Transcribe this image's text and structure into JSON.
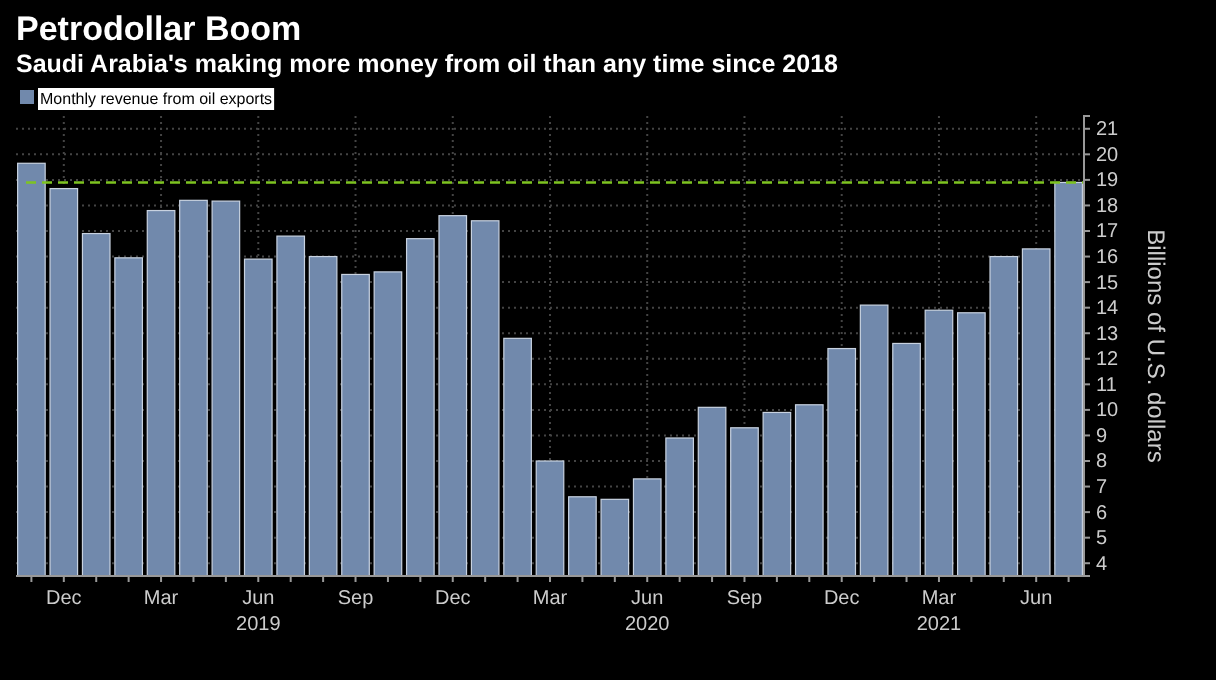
{
  "chart_data": {
    "type": "bar",
    "title": "Petrodollar Boom",
    "subtitle": "Saudi Arabia's making more money from oil than any time since 2018",
    "ylabel": "Billions of U.S. dollars",
    "categories": [
      null,
      "Dec",
      null,
      null,
      "Mar",
      null,
      null,
      "Jun\n2019",
      null,
      null,
      "Sep",
      null,
      null,
      "Dec",
      null,
      null,
      "Mar",
      null,
      null,
      "Jun\n2020",
      null,
      null,
      "Sep",
      null,
      null,
      "Dec",
      null,
      null,
      "Mar\n2021",
      null,
      null,
      "Jun",
      null
    ],
    "series": [
      {
        "name": "Monthly revenue from oil exports",
        "color": "#7189ac",
        "values": [
          19.65,
          18.66,
          16.9,
          15.95,
          17.8,
          18.2,
          18.17,
          15.9,
          16.8,
          16.0,
          15.3,
          15.4,
          16.7,
          17.6,
          17.4,
          12.8,
          8.0,
          6.6,
          6.5,
          7.3,
          8.9,
          10.1,
          9.3,
          9.9,
          10.2,
          12.4,
          14.1,
          12.6,
          13.9,
          13.8,
          16.0,
          16.3,
          18.9
        ]
      }
    ],
    "ylim": [
      3.5,
      21.5
    ],
    "yticks": [
      4,
      5,
      6,
      7,
      8,
      9,
      10,
      11,
      12,
      13,
      14,
      15,
      16,
      17,
      18,
      19,
      20,
      21
    ],
    "ref_lines": [
      {
        "axis": "y",
        "value": 18.9,
        "color": "#7ec321",
        "line_style": "dashed"
      }
    ],
    "grid": true,
    "legend": "top left"
  }
}
